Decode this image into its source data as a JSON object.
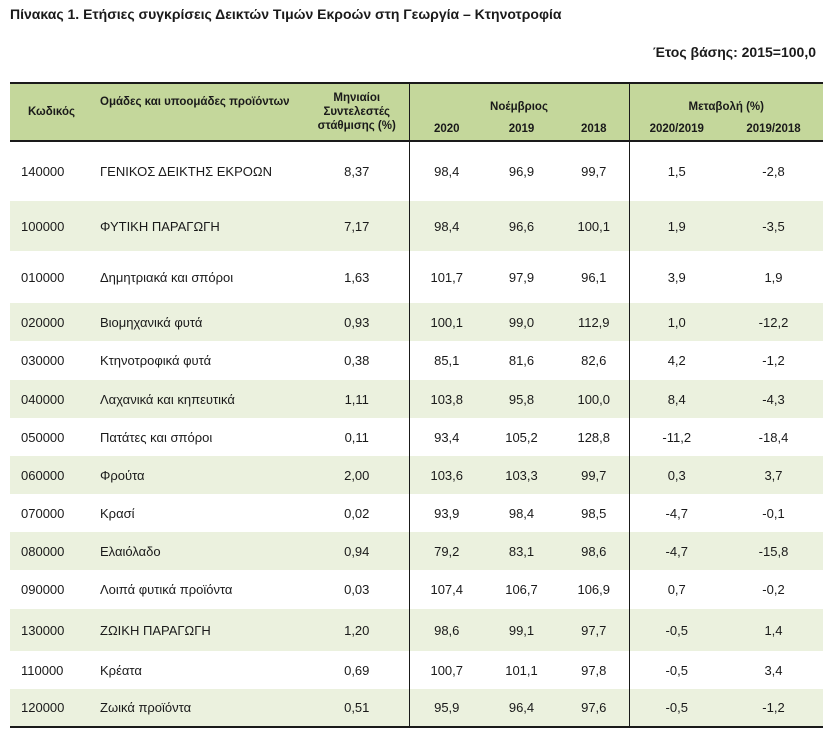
{
  "title": "Πίνακας 1. Ετήσιες συγκρίσεις Δεικτών Τιμών Εκροών στη Γεωργία – Κτηνοτροφία",
  "base_year": "Έτος βάσης: 2015=100,0",
  "header": {
    "code": "Κωδικός",
    "groups": "Ομάδες και υποομάδες προϊόντων",
    "weights": "Μηνιαίοι Συντελεστές στάθμισης (%)",
    "month": "Νοέμβριος",
    "change": "Μεταβολή (%)",
    "y2020": "2020",
    "y2019": "2019",
    "y2018": "2018",
    "c1": "2020/2019",
    "c2": "2019/2018"
  },
  "rows": [
    {
      "code": "140000",
      "name": "ΓΕΝΙΚΟΣ ΔΕΙΚΤΗΣ ΕΚΡΟΩΝ",
      "w": "8,37",
      "y2020": "98,4",
      "y2019": "96,9",
      "y2018": "99,7",
      "c1": "1,5",
      "c2": "-2,8"
    },
    {
      "code": "100000",
      "name": "ΦΥΤΙΚΗ ΠΑΡΑΓΩΓΗ",
      "w": "7,17",
      "y2020": "98,4",
      "y2019": "96,6",
      "y2018": "100,1",
      "c1": "1,9",
      "c2": "-3,5"
    },
    {
      "code": "010000",
      "name": "Δημητριακά και σπόροι",
      "w": "1,63",
      "y2020": "101,7",
      "y2019": "97,9",
      "y2018": "96,1",
      "c1": "3,9",
      "c2": "1,9"
    },
    {
      "code": "020000",
      "name": "Βιομηχανικά φυτά",
      "w": "0,93",
      "y2020": "100,1",
      "y2019": "99,0",
      "y2018": "112,9",
      "c1": "1,0",
      "c2": "-12,2"
    },
    {
      "code": "030000",
      "name": "Κτηνοτροφικά φυτά",
      "w": "0,38",
      "y2020": "85,1",
      "y2019": "81,6",
      "y2018": "82,6",
      "c1": "4,2",
      "c2": "-1,2"
    },
    {
      "code": "040000",
      "name": "Λαχανικά και κηπευτικά",
      "w": "1,11",
      "y2020": "103,8",
      "y2019": "95,8",
      "y2018": "100,0",
      "c1": "8,4",
      "c2": "-4,3"
    },
    {
      "code": "050000",
      "name": "Πατάτες και σπόροι",
      "w": "0,11",
      "y2020": "93,4",
      "y2019": "105,2",
      "y2018": "128,8",
      "c1": "-11,2",
      "c2": "-18,4"
    },
    {
      "code": "060000",
      "name": "Φρούτα",
      "w": "2,00",
      "y2020": "103,6",
      "y2019": "103,3",
      "y2018": "99,7",
      "c1": "0,3",
      "c2": "3,7"
    },
    {
      "code": "070000",
      "name": "Κρασί",
      "w": "0,02",
      "y2020": "93,9",
      "y2019": "98,4",
      "y2018": "98,5",
      "c1": "-4,7",
      "c2": "-0,1"
    },
    {
      "code": "080000",
      "name": "Ελαιόλαδο",
      "w": "0,94",
      "y2020": "79,2",
      "y2019": "83,1",
      "y2018": "98,6",
      "c1": "-4,7",
      "c2": "-15,8"
    },
    {
      "code": "090000",
      "name": "Λοιπά φυτικά προϊόντα",
      "w": "0,03",
      "y2020": "107,4",
      "y2019": "106,7",
      "y2018": "106,9",
      "c1": "0,7",
      "c2": "-0,2"
    },
    {
      "code": "130000",
      "name": "ΖΩΙΚΗ ΠΑΡΑΓΩΓΗ",
      "w": "1,20",
      "y2020": "98,6",
      "y2019": "99,1",
      "y2018": "97,7",
      "c1": "-0,5",
      "c2": "1,4"
    },
    {
      "code": "110000",
      "name": "Κρέατα",
      "w": "0,69",
      "y2020": "100,7",
      "y2019": "101,1",
      "y2018": "97,8",
      "c1": "-0,5",
      "c2": "3,4"
    },
    {
      "code": "120000",
      "name": "Ζωικά προϊόντα",
      "w": "0,51",
      "y2020": "95,9",
      "y2019": "96,4",
      "y2018": "97,6",
      "c1": "-0,5",
      "c2": "-1,2"
    }
  ]
}
